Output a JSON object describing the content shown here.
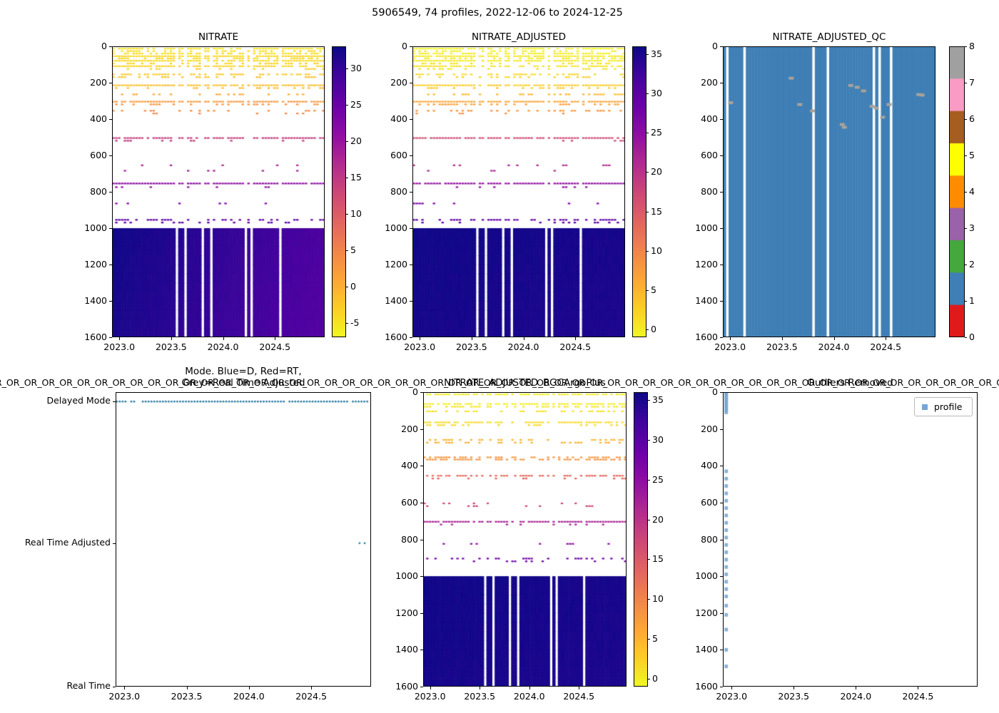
{
  "figure_title": "5906549, 74 profiles, 2022-12-06 to 2024-12-25",
  "or_strip": "R_OR_OR_OR_OR_OR_OR_OR_OR_OR_OR_OR_OR_OR_OR_OR_OR_OR_OR_OR_OR_OR_OR_OR_OR_OR_OR_OR_OR_OR_OR_OR_OR_OR_OR_OR_OR_OR_OR_OR_OR_OR_OR_OR_OR_OR_OR_OR_OR_OR_OR_OR_OR_OR_OR_OR_OR_OR_OR_OR_OR_OR_OR_OR_OR_OR_OR_OR_OR_OR_OR_OR",
  "palette": {
    "plasma": [
      [
        0,
        "#0d0887"
      ],
      [
        0.1,
        "#41049d"
      ],
      [
        0.2,
        "#6a00a8"
      ],
      [
        0.3,
        "#8f0da4"
      ],
      [
        0.4,
        "#b12a90"
      ],
      [
        0.5,
        "#cc4778"
      ],
      [
        0.6,
        "#e16462"
      ],
      [
        0.7,
        "#f1844b"
      ],
      [
        0.8,
        "#fca636"
      ],
      [
        0.9,
        "#fcce25"
      ],
      [
        1,
        "#f0f921"
      ]
    ]
  },
  "chart_data": [
    {
      "kind": "heatmap",
      "type": "heatmap",
      "title": "NITRATE",
      "x_range": [
        2022.93,
        2024.98
      ],
      "x_ticks": [
        "2023.0",
        "2023.5",
        "2024.0",
        "2024.5"
      ],
      "y_range": [
        0,
        1600
      ],
      "y_ticks": [
        0,
        200,
        400,
        600,
        800,
        1000,
        1200,
        1400,
        1600
      ],
      "n_profiles": 74,
      "missing_cols": [
        22,
        25,
        31,
        34,
        46,
        48,
        58
      ],
      "vmin": -7,
      "vmax": 33,
      "colorbar_ticks": [
        30,
        25,
        20,
        15,
        10,
        5,
        0,
        -5
      ],
      "rows": [
        [
          8,
          -5,
          0.85
        ],
        [
          22,
          -4.5,
          0.5
        ],
        [
          35,
          -4.5,
          0.7
        ],
        [
          50,
          -4,
          0.95
        ],
        [
          62,
          -4,
          0.45
        ],
        [
          75,
          -4,
          0.9
        ],
        [
          90,
          -3.5,
          0.4
        ],
        [
          105,
          -3.5,
          0.75
        ],
        [
          120,
          -3,
          0.3
        ],
        [
          150,
          -2.5,
          0.55
        ],
        [
          165,
          -2,
          0.25
        ],
        [
          210,
          -1.5,
          0.97
        ],
        [
          225,
          -1,
          0.25
        ],
        [
          260,
          0.5,
          0.3
        ],
        [
          300,
          2.5,
          0.95
        ],
        [
          315,
          3,
          0.35
        ],
        [
          350,
          4,
          0.25
        ],
        [
          365,
          4.5,
          0.12
        ],
        [
          500,
          14,
          0.8
        ],
        [
          515,
          14.5,
          0.15
        ],
        [
          650,
          17.5,
          0.1
        ],
        [
          680,
          18,
          0.06
        ],
        [
          750,
          21,
          0.97
        ],
        [
          770,
          21,
          0.08
        ],
        [
          860,
          23,
          0.06
        ],
        [
          950,
          26,
          0.5
        ],
        [
          965,
          26.5,
          0.2
        ]
      ],
      "block": {
        "top": 1000,
        "bottom": 1600,
        "v0": 32.8,
        "vx": -5,
        "vz": -0.8
      }
    },
    {
      "kind": "heatmap",
      "type": "heatmap",
      "title": "NITRATE_ADJUSTED",
      "x_range": [
        2022.93,
        2024.98
      ],
      "x_ticks": [
        "2023.0",
        "2023.5",
        "2024.0",
        "2024.5"
      ],
      "y_range": [
        0,
        1600
      ],
      "y_ticks": [
        0,
        200,
        400,
        600,
        800,
        1000,
        1200,
        1400,
        1600
      ],
      "n_profiles": 74,
      "missing_cols": [
        22,
        25,
        31,
        34,
        46,
        48,
        58
      ],
      "vmin": -1,
      "vmax": 36,
      "colorbar_ticks": [
        35,
        30,
        25,
        20,
        15,
        10,
        5,
        0
      ],
      "rows": [
        [
          8,
          -0.5,
          0.85
        ],
        [
          22,
          0,
          0.5
        ],
        [
          35,
          0,
          0.7
        ],
        [
          50,
          0.3,
          0.95
        ],
        [
          62,
          0.3,
          0.45
        ],
        [
          75,
          0.3,
          0.9
        ],
        [
          90,
          0.8,
          0.4
        ],
        [
          105,
          0.8,
          0.75
        ],
        [
          120,
          1.2,
          0.3
        ],
        [
          150,
          1.8,
          0.55
        ],
        [
          165,
          2.2,
          0.25
        ],
        [
          210,
          2.8,
          0.97
        ],
        [
          225,
          3.2,
          0.25
        ],
        [
          260,
          4.5,
          0.3
        ],
        [
          300,
          6.5,
          0.95
        ],
        [
          315,
          7,
          0.35
        ],
        [
          350,
          8,
          0.25
        ],
        [
          365,
          8.5,
          0.12
        ],
        [
          500,
          17,
          0.8
        ],
        [
          515,
          17.5,
          0.15
        ],
        [
          650,
          21,
          0.1
        ],
        [
          680,
          21.5,
          0.06
        ],
        [
          750,
          24.5,
          0.97
        ],
        [
          770,
          24.5,
          0.08
        ],
        [
          860,
          26.5,
          0.06
        ],
        [
          950,
          29.5,
          0.5
        ],
        [
          965,
          30,
          0.2
        ]
      ],
      "block": {
        "top": 1000,
        "bottom": 1600,
        "v0": 35.7,
        "vx": -0.5,
        "vz": -0.4
      }
    },
    {
      "kind": "qc",
      "type": "heatmap",
      "title": "NITRATE_ADJUSTED_QC",
      "x_range": [
        2022.93,
        2024.98
      ],
      "x_ticks": [
        "2023.0",
        "2023.5",
        "2024.0",
        "2024.5"
      ],
      "y_range": [
        0,
        1600
      ],
      "y_ticks": [
        0,
        200,
        400,
        600,
        800,
        1000,
        1200,
        1400,
        1600
      ],
      "n_profiles": 74,
      "missing_cols": [
        1,
        7,
        31,
        36,
        52,
        54,
        58
      ],
      "fill_qc": 1,
      "qc_colors": [
        "#e01a1a",
        "#3f7fb5",
        "#44a83c",
        "#9a62a8",
        "#ff8c00",
        "#ffff00",
        "#a55d20",
        "#f99bc4",
        "#a0a0a0"
      ],
      "gray_color": "#a8a39d",
      "colorbar_ticks": [
        8,
        7,
        6,
        5,
        4,
        3,
        2,
        1,
        0
      ],
      "gray_marks": [
        [
          0.32,
          175
        ],
        [
          0.035,
          310
        ],
        [
          0.36,
          320
        ],
        [
          0.42,
          355
        ],
        [
          0.56,
          430
        ],
        [
          0.57,
          445
        ],
        [
          0.6,
          215
        ],
        [
          0.63,
          225
        ],
        [
          0.66,
          245
        ],
        [
          0.7,
          330
        ],
        [
          0.72,
          340
        ],
        [
          0.75,
          390
        ],
        [
          0.78,
          320
        ],
        [
          0.92,
          265
        ],
        [
          0.935,
          268
        ]
      ]
    },
    {
      "kind": "mode",
      "type": "scatter",
      "title_lines": [
        "Mode. Blue=D, Red=RT,",
        "Grey=Real Time Adjusted"
      ],
      "x_range": [
        2022.93,
        2024.98
      ],
      "x_ticks": [
        "2023.0",
        "2023.5",
        "2024.0",
        "2024.5"
      ],
      "y_categories": [
        "Delayed Mode",
        "Real Time Adjusted",
        "Real Time"
      ],
      "cat_fracs": [
        0.032,
        0.513,
        1.0
      ],
      "delayed_dots": {
        "x0": 0.005,
        "x1": 0.985,
        "n": 88
      },
      "rta_dots": [
        0.955,
        0.975
      ],
      "dot_color": "#2e7ea6"
    },
    {
      "kind": "heatmap",
      "type": "heatmap",
      "title": "NITRATE_ADJUSTED_BGCArgoPlus",
      "x_range": [
        2022.93,
        2024.98
      ],
      "x_ticks": [
        "2023.0",
        "2023.5",
        "2024.0",
        "2024.5"
      ],
      "y_range": [
        0,
        1600
      ],
      "y_ticks": [
        0,
        200,
        400,
        600,
        800,
        1000,
        1200,
        1400,
        1600
      ],
      "n_profiles": 74,
      "missing_cols": [
        22,
        25,
        31,
        34,
        46,
        48,
        58
      ],
      "vmin": -1,
      "vmax": 36,
      "colorbar_ticks": [
        35,
        30,
        25,
        20,
        15,
        10,
        5,
        0
      ],
      "rows": [
        [
          8,
          0,
          0.8
        ],
        [
          60,
          0,
          0.85
        ],
        [
          75,
          0.5,
          0.6
        ],
        [
          100,
          1,
          0.4
        ],
        [
          160,
          1.5,
          0.8
        ],
        [
          175,
          2,
          0.3
        ],
        [
          255,
          5,
          0.4
        ],
        [
          270,
          5.5,
          0.25
        ],
        [
          350,
          8,
          0.7
        ],
        [
          362,
          8.5,
          0.5
        ],
        [
          450,
          13,
          0.65
        ],
        [
          465,
          13.5,
          0.2
        ],
        [
          600,
          17,
          0.12
        ],
        [
          615,
          17.5,
          0.08
        ],
        [
          700,
          22,
          0.9
        ],
        [
          715,
          22,
          0.15
        ],
        [
          820,
          25,
          0.08
        ],
        [
          900,
          28,
          0.45
        ],
        [
          915,
          28,
          0.2
        ]
      ],
      "block": {
        "top": 1000,
        "bottom": 1600,
        "v0": 35.7,
        "vx": -0.5,
        "vz": -0.4
      }
    },
    {
      "kind": "outliers",
      "type": "scatter",
      "title": "Outliers Removed",
      "legend_label": "profile",
      "x_range": [
        2022.93,
        2024.98
      ],
      "x_ticks": [
        "2023.0",
        "2023.5",
        "2024.0",
        "2024.5"
      ],
      "y_range": [
        0,
        1600
      ],
      "y_ticks": [
        0,
        200,
        400,
        600,
        800,
        1000,
        1200,
        1400,
        1600
      ],
      "marker_color": "#74a6d2",
      "marker_x": 0.013,
      "marker_depths": [
        0,
        10,
        20,
        30,
        40,
        50,
        60,
        70,
        80,
        90,
        100,
        110,
        430,
        470,
        510,
        550,
        590,
        630,
        670,
        710,
        750,
        790,
        830,
        870,
        910,
        950,
        990,
        1030,
        1070,
        1110,
        1160,
        1210,
        1290,
        1400,
        1490
      ]
    }
  ]
}
